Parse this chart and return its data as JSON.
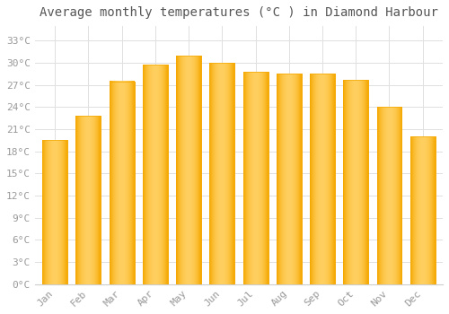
{
  "title": "Average monthly temperatures (°C ) in Diamond Harbour",
  "months": [
    "Jan",
    "Feb",
    "Mar",
    "Apr",
    "May",
    "Jun",
    "Jul",
    "Aug",
    "Sep",
    "Oct",
    "Nov",
    "Dec"
  ],
  "values": [
    19.5,
    22.8,
    27.5,
    29.8,
    31.0,
    30.0,
    28.8,
    28.5,
    28.5,
    27.7,
    24.0,
    20.0
  ],
  "bar_color_left": "#F5A800",
  "bar_color_center": "#FFD060",
  "bar_color_right": "#F5A800",
  "background_color": "#ffffff",
  "grid_color": "#e0e0e0",
  "tick_label_color": "#999999",
  "title_color": "#555555",
  "yticks": [
    0,
    3,
    6,
    9,
    12,
    15,
    18,
    21,
    24,
    27,
    30,
    33
  ],
  "ylim": [
    0,
    35
  ],
  "font_family": "monospace",
  "title_fontsize": 10,
  "tick_fontsize": 8,
  "bar_width": 0.75,
  "figsize": [
    5.0,
    3.5
  ],
  "dpi": 100
}
